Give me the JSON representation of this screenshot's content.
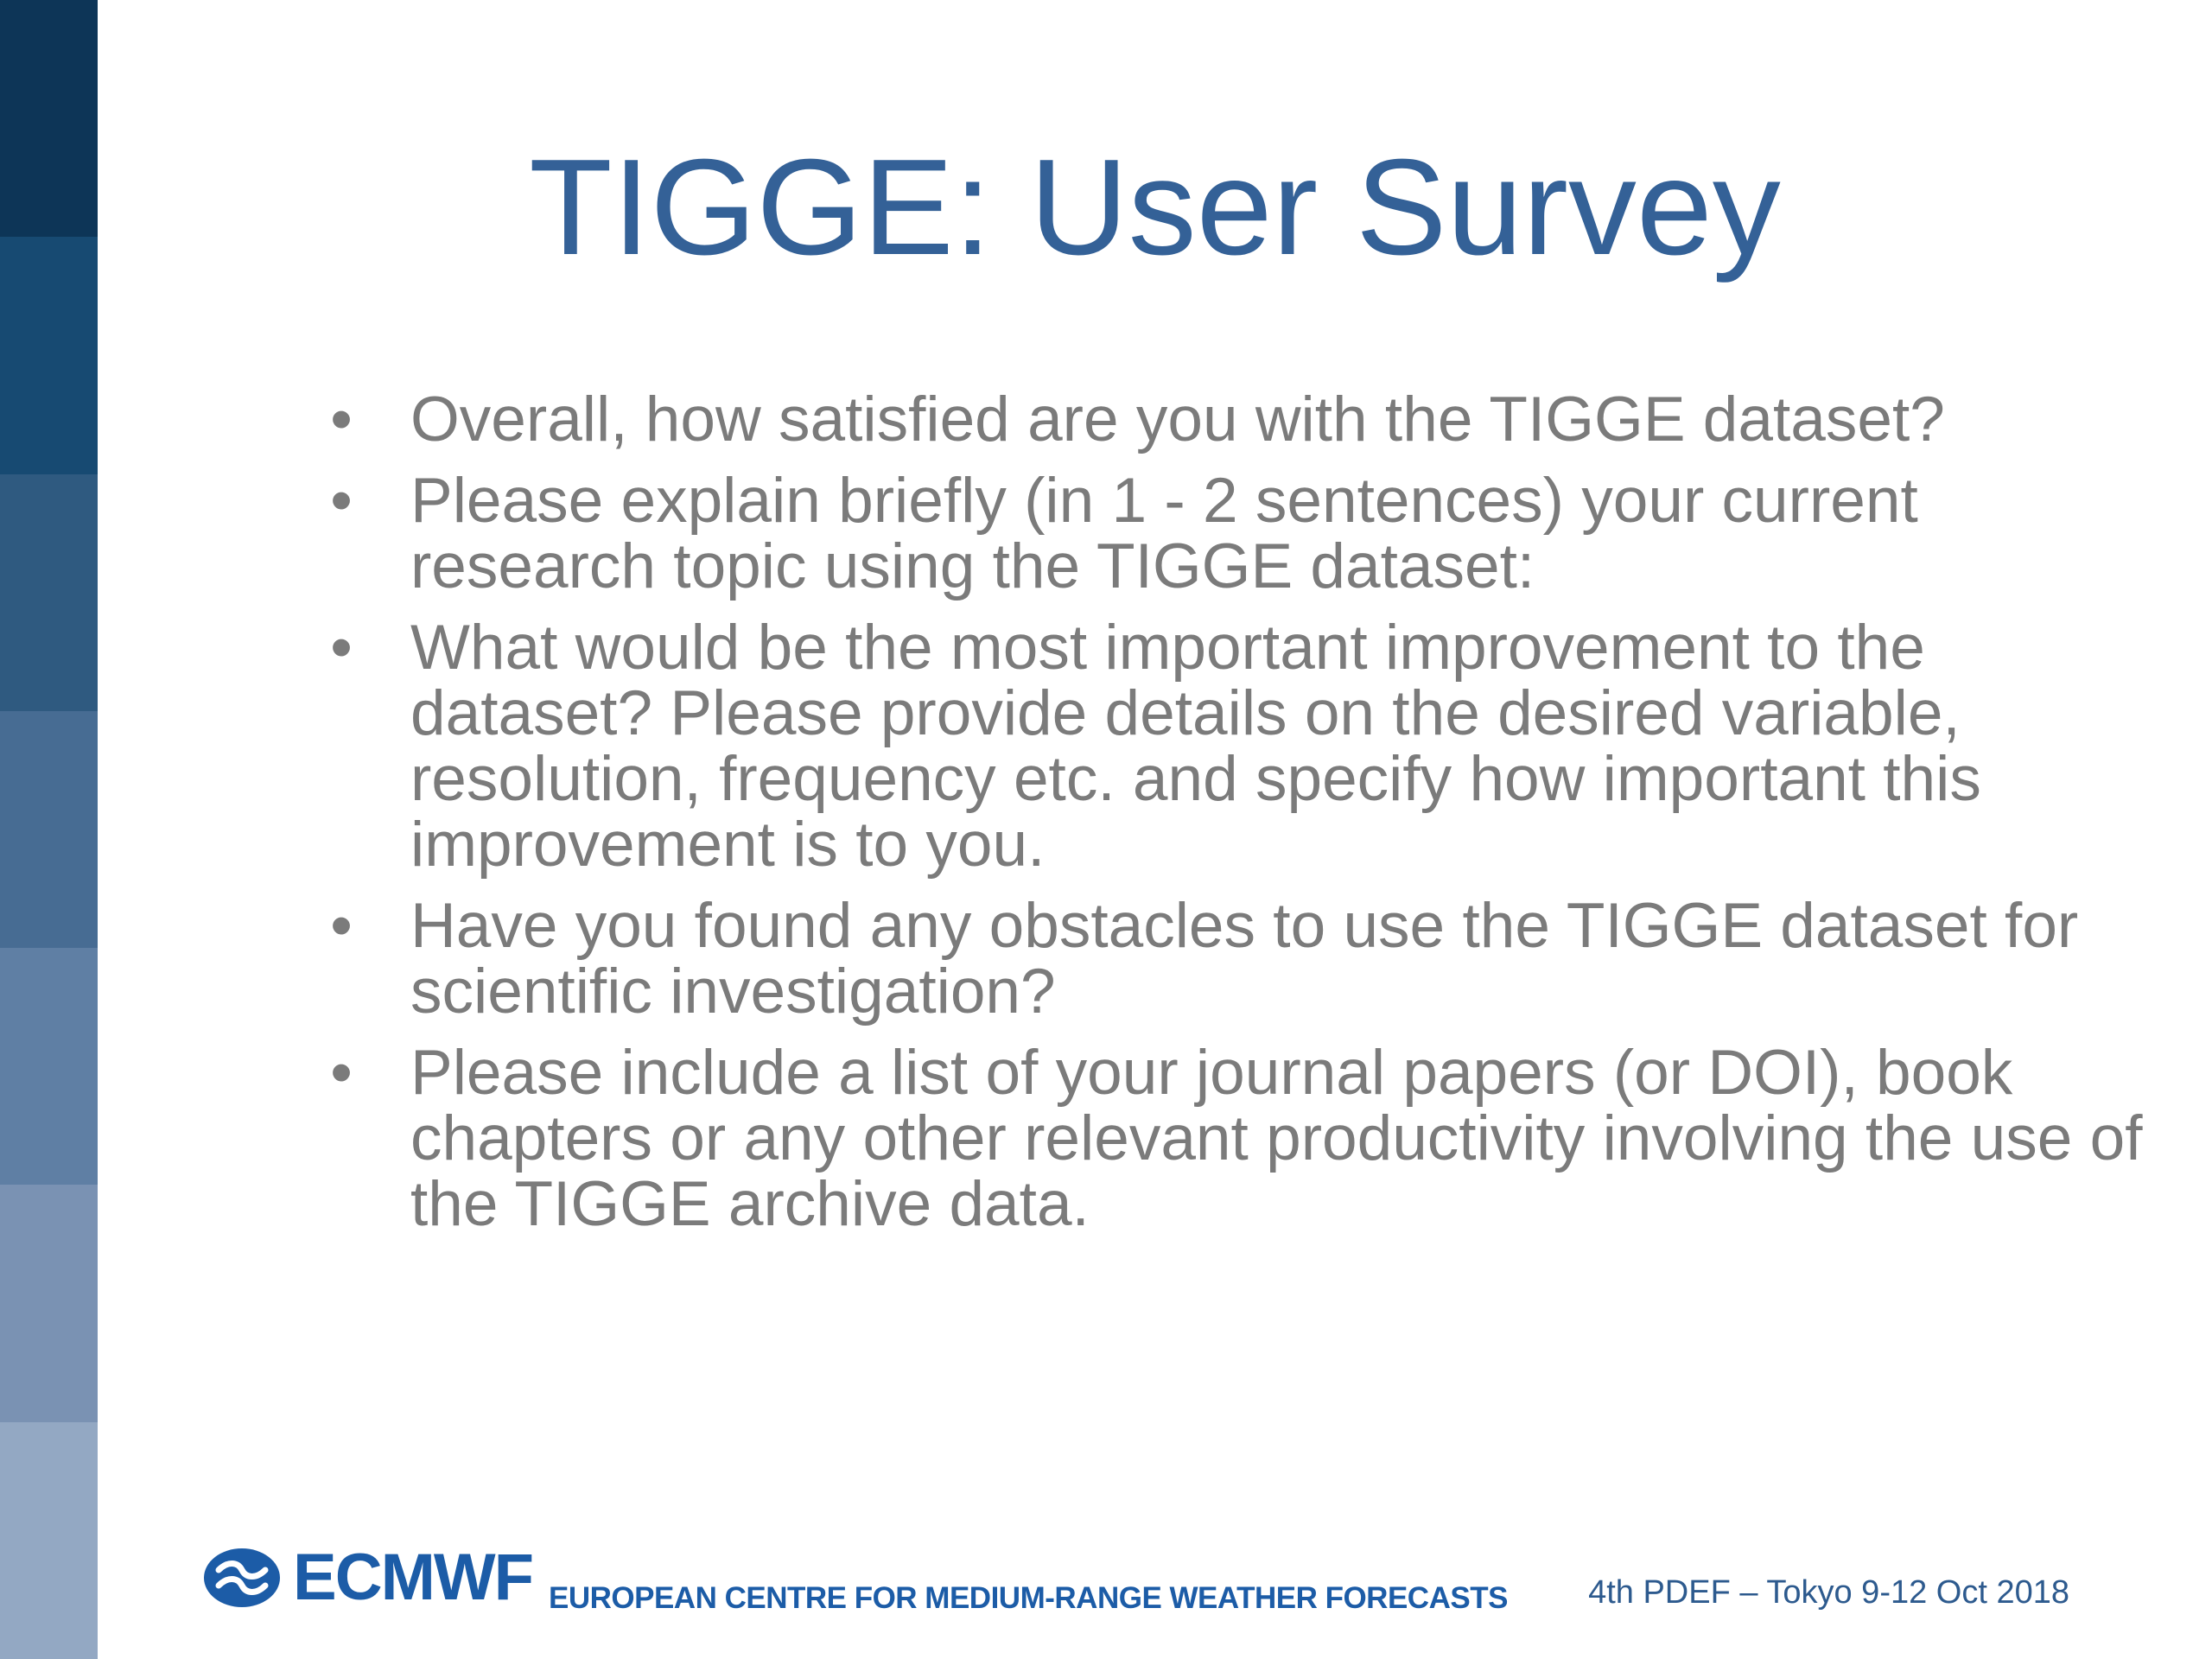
{
  "slide": {
    "title": "TIGGE: User Survey",
    "bullets": [
      "Overall, how satisfied are you with the TIGGE dataset?",
      "Please explain briefly (in 1 - 2 sentences) your current research topic using the TIGGE dataset:",
      "What would be the most important improvement to the dataset? Please provide details on the desired variable, resolution, frequency etc. and specify how important this improvement is to you.",
      "Have you found any obstacles to use the TIGGE dataset for scientific investigation?",
      "Please include a list of your journal papers (or DOI), book chapters or any other relevant productivity involving the use of the TIGGE archive data."
    ]
  },
  "footer": {
    "logo_text": "ECMWF",
    "org_name": "EUROPEAN CENTRE FOR MEDIUM-RANGE WEATHER FORECASTS",
    "event": "4th PDEF – Tokyo 9-12 Oct 2018"
  },
  "colors": {
    "title": "#346197",
    "body_text": "#7b7b7b",
    "brand_blue": "#1c5ca7",
    "sidebar_gradient": [
      "#0d3557",
      "#174a72",
      "#2f5a80",
      "#476c93",
      "#5f7fa4",
      "#7a92b3",
      "#93a8c3"
    ]
  },
  "icons": {
    "logo_mark": "ecmwf-logo-icon",
    "bullet": "bullet-icon"
  }
}
